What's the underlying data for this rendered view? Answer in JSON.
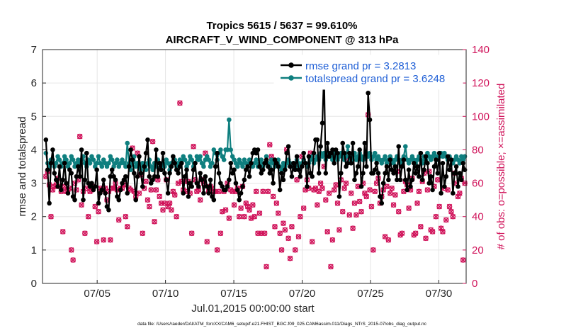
{
  "colors": {
    "rmse": "#000000",
    "spread": "#0f7f7f",
    "obs": "#d0135a",
    "legend_text": "#1f5fd6",
    "axis": "#262626"
  },
  "chart_data": {
    "type": "line",
    "title": "Tropics 5615 / 5637 = 99.610%",
    "subtitle": "AIRCRAFT_V_WIND_COMPONENT @ 313 hPa",
    "xlabel": "Jul.01,2015 00:00:00 start",
    "ylabel_left": "rmse and totalspread",
    "ylabel_right": "# of obs: o=possible; ×=assimilated",
    "footnote": "data file: /Users/raeder/DAI/ATM_forcXX/CAM6_setup/f.e21.FHIST_BGC.f09_025.CAM6assim.011/Diags_NTrS_2015-07/obs_diag_output.nc",
    "xlim": [
      1,
      32
    ],
    "ylim_left": [
      0,
      7
    ],
    "ylim_right": [
      0,
      140
    ],
    "x_ticks": [
      {
        "value": 5,
        "label": "07/05"
      },
      {
        "value": 10,
        "label": "07/10"
      },
      {
        "value": 15,
        "label": "07/15"
      },
      {
        "value": 20,
        "label": "07/20"
      },
      {
        "value": 25,
        "label": "07/25"
      },
      {
        "value": 30,
        "label": "07/30"
      }
    ],
    "y_left_ticks": [
      {
        "value": 0,
        "label": "0"
      },
      {
        "value": 1,
        "label": "1"
      },
      {
        "value": 2,
        "label": "2"
      },
      {
        "value": 3,
        "label": "3"
      },
      {
        "value": 4,
        "label": "4"
      },
      {
        "value": 5,
        "label": "5"
      },
      {
        "value": 6,
        "label": "6"
      },
      {
        "value": 7,
        "label": "7"
      }
    ],
    "y_right_ticks": [
      {
        "value": 0,
        "label": "0"
      },
      {
        "value": 20,
        "label": "20"
      },
      {
        "value": 40,
        "label": "40"
      },
      {
        "value": 60,
        "label": "60"
      },
      {
        "value": 80,
        "label": "80"
      },
      {
        "value": 100,
        "label": "100"
      },
      {
        "value": 120,
        "label": "120"
      },
      {
        "value": 140,
        "label": "140"
      }
    ],
    "legend": [
      {
        "label": "rmse grand pr = 3.2813",
        "series": "rmse"
      },
      {
        "label": "totalspread grand pr = 3.6248",
        "series": "spread"
      }
    ],
    "legend_position": "top-right",
    "series": [
      {
        "name": "rmse",
        "axis": "left",
        "values": [
          4.3,
          3.4,
          2.4,
          3.6,
          4.0,
          3.3,
          3.1,
          2.9,
          3.5,
          2.8,
          3.1,
          3.6,
          3.0,
          2.7,
          3.4,
          3.3,
          2.6,
          2.5,
          3.2,
          3.5,
          3.2,
          4.0,
          2.5,
          3.1,
          3.9,
          3.0,
          2.9,
          3.0,
          2.8,
          2.9,
          3.4,
          2.4,
          2.7,
          2.8,
          3.1,
          2.7,
          2.3,
          2.2,
          3.2,
          3.4,
          3.2,
          3.1,
          2.6,
          2.5,
          2.8,
          3.0,
          3.1,
          3.2,
          2.7,
          3.5,
          4.0,
          3.7,
          3.3,
          2.5,
          3.2,
          3.8,
          3.3,
          2.9,
          3.5,
          3.9,
          4.3,
          3.2,
          3.0,
          3.1,
          3.2,
          4.0,
          3.2,
          3.6,
          3.4,
          3.9,
          3.3,
          3.1,
          2.7,
          3.3,
          3.5,
          3.8,
          3.6,
          3.4,
          3.3,
          3.5,
          3.6,
          2.7,
          3.2,
          3.4,
          2.6,
          3.0,
          2.9,
          3.4,
          3.6,
          3.0,
          2.9,
          3.3,
          3.1,
          2.7,
          3.2,
          2.9,
          2.7,
          3.1,
          2.6,
          2.5,
          3.5,
          3.9,
          3.3,
          3.0,
          2.9,
          2.8,
          2.8,
          2.9,
          3.1,
          3.6,
          3.3,
          3.4,
          3.0,
          2.8,
          2.5,
          2.7,
          2.9,
          3.1,
          3.4,
          3.5,
          3.2,
          3.6,
          3.9,
          4.0,
          3.9,
          4.0,
          3.5,
          3.3,
          3.4,
          3.6,
          3.7,
          3.5,
          3.3,
          3.4,
          3.0,
          3.7,
          3.6,
          3.5,
          2.8,
          3.3,
          3.1,
          3.4,
          3.9,
          4.1,
          3.5,
          3.2,
          3.6,
          3.4,
          3.8,
          3.4,
          3.2,
          3.5,
          3.9,
          3.6,
          2.9,
          3.8,
          3.3,
          3.2,
          3.9,
          4.3,
          4.3,
          3.3,
          4.1,
          4.8,
          6.3,
          3.3,
          4.2,
          3.8,
          3.9,
          4.0,
          3.6,
          4.0,
          3.9,
          2.6,
          3.3,
          4.2,
          3.9,
          3.5,
          3.6,
          3.9,
          3.6,
          4.2,
          3.1,
          3.3,
          3.5,
          4.0,
          2.9,
          3.3,
          4.2,
          3.5,
          5.7,
          4.9,
          3.3,
          3.3,
          3.4,
          3.6,
          3.3,
          2.6,
          2.4,
          3.0,
          3.3,
          3.5,
          3.1,
          3.7,
          3.4,
          3.3,
          3.5,
          3.1,
          4.1,
          3.1,
          3.5,
          3.7,
          3.1,
          2.8,
          3.4,
          2.9,
          3.1,
          3.6,
          3.3,
          3.5,
          3.2,
          3.9,
          3.1,
          3.4,
          3.8,
          3.6,
          3.0,
          3.2,
          2.8,
          3.5,
          3.7,
          3.3,
          3.9,
          2.7,
          3.6,
          2.9,
          3.2,
          3.8,
          3.4,
          3.7,
          2.7,
          3.3,
          3.5,
          2.9,
          3.3,
          3.1,
          3.6,
          3.4
        ]
      },
      {
        "name": "totalspread",
        "axis": "left",
        "values": [
          3.9,
          3.6,
          3.5,
          3.7,
          3.7,
          3.5,
          3.6,
          3.8,
          3.7,
          3.5,
          3.6,
          3.8,
          3.7,
          3.5,
          3.6,
          3.8,
          3.7,
          3.5,
          3.6,
          3.7,
          3.6,
          3.7,
          3.8,
          3.6,
          3.5,
          3.7,
          3.6,
          3.8,
          3.7,
          3.5,
          3.6,
          3.8,
          3.6,
          3.5,
          3.7,
          3.6,
          3.5,
          3.6,
          3.8,
          3.7,
          3.5,
          3.6,
          3.7,
          3.5,
          3.6,
          3.7,
          3.6,
          3.5,
          4.2,
          3.6,
          3.4,
          3.6,
          3.8,
          3.5,
          3.6,
          3.5,
          3.4,
          3.6,
          3.5,
          3.4,
          3.6,
          3.7,
          3.5,
          3.4,
          3.6,
          3.5,
          3.7,
          3.6,
          3.4,
          3.6,
          3.5,
          3.7,
          3.6,
          3.4,
          3.6,
          3.8,
          3.7,
          3.5,
          3.6,
          3.7,
          3.6,
          3.8,
          3.7,
          3.5,
          3.6,
          3.8,
          3.7,
          3.5,
          3.6,
          3.8,
          3.7,
          3.8,
          3.6,
          3.5,
          3.7,
          3.8,
          3.7,
          3.5,
          3.6,
          4.0,
          3.9,
          3.7,
          3.9,
          4.0,
          3.8,
          3.7,
          4.0,
          4.0,
          4.9,
          4.0,
          3.8,
          3.7,
          3.6,
          3.5,
          3.7,
          3.6,
          3.5,
          3.7,
          3.6,
          3.5,
          3.7,
          3.6,
          3.5,
          3.6,
          3.7,
          3.5,
          3.6,
          3.7,
          3.5,
          3.6,
          3.8,
          3.6,
          3.5,
          3.7,
          3.6,
          3.5,
          3.6,
          3.7,
          3.5,
          3.4,
          3.6,
          3.5,
          3.6,
          3.7,
          3.6,
          3.5,
          3.6,
          3.5,
          3.7,
          3.6,
          3.5,
          3.6,
          3.7,
          3.6,
          3.5,
          3.6,
          3.7,
          3.8,
          3.6,
          3.7,
          3.8,
          3.7,
          3.9,
          3.8,
          3.9,
          3.7,
          3.8,
          3.9,
          3.8,
          3.7,
          3.9,
          3.8,
          3.7,
          3.8,
          3.9,
          3.8,
          3.7,
          3.8,
          4.1,
          3.8,
          3.7,
          3.8,
          3.9,
          3.7,
          3.8,
          3.9,
          3.8,
          3.7,
          3.8,
          3.9,
          3.8,
          3.9,
          3.7,
          3.8,
          3.9,
          3.7,
          3.8,
          3.7,
          3.6,
          3.7,
          3.8,
          3.6,
          3.7,
          3.8,
          3.7,
          3.6,
          3.7,
          3.8,
          3.7,
          3.6,
          3.7,
          3.8,
          4.1,
          3.7,
          3.6,
          3.7,
          3.8,
          3.7,
          3.6,
          3.7,
          3.8,
          3.7,
          3.6,
          3.8,
          3.7,
          3.9,
          3.8,
          3.7,
          3.8,
          3.9,
          3.8,
          3.7,
          3.8,
          3.9,
          3.8,
          3.9,
          3.8,
          3.7,
          3.8,
          3.7,
          3.6,
          3.7,
          3.8,
          3.7,
          3.6,
          3.8,
          3.7,
          3.8
        ]
      },
      {
        "name": "obs_assimilated",
        "axis": "right",
        "values": [
          64,
          67,
          59,
          40,
          56,
          58,
          59,
          63,
          58,
          55,
          31,
          58,
          55,
          56,
          57,
          20,
          14,
          60,
          56,
          62,
          88,
          47,
          55,
          30,
          57,
          40,
          55,
          56,
          58,
          46,
          25,
          43,
          57,
          56,
          26,
          57,
          50,
          55,
          26,
          57,
          57,
          60,
          56,
          38,
          57,
          57,
          59,
          40,
          34,
          57,
          56,
          81,
          55,
          52,
          78,
          54,
          65,
          30,
          57,
          61,
          50,
          46,
          56,
          85,
          37,
          56,
          62,
          52,
          48,
          44,
          48,
          62,
          46,
          48,
          44,
          55,
          53,
          40,
          60,
          108,
          61,
          56,
          61,
          55,
          61,
          54,
          30,
          82,
          62,
          55,
          56,
          50,
          62,
          60,
          78,
          25,
          55,
          58,
          57,
          55,
          55,
          20,
          55,
          30,
          43,
          55,
          44,
          60,
          39,
          56,
          55,
          47,
          55,
          57,
          40,
          45,
          58,
          40,
          48,
          46,
          44,
          39,
          47,
          40,
          55,
          30,
          42,
          30,
          55,
          30,
          10,
          55,
          83,
          76,
          52,
          34,
          48,
          42,
          30,
          20,
          36,
          32,
          80,
          27,
          15,
          34,
          70,
          20,
          62,
          28,
          40,
          76,
          45,
          56,
          62,
          57,
          78,
          25,
          56,
          57,
          47,
          55,
          60,
          57,
          70,
          50,
          31,
          54,
          10,
          26,
          56,
          59,
          48,
          32,
          62,
          43,
          57,
          60,
          75,
          41,
          54,
          33,
          48,
          41,
          58,
          49,
          43,
          60,
          54,
          52,
          101,
          56,
          46,
          20,
          55,
          60,
          63,
          48,
          52,
          56,
          28,
          58,
          26,
          54,
          57,
          47,
          53,
          67,
          43,
          29,
          30,
          55,
          61,
          59,
          45,
          56,
          63,
          29,
          30,
          48,
          55,
          34,
          61,
          66,
          27,
          56,
          67,
          32,
          31,
          58,
          40,
          62,
          46,
          33,
          31,
          57,
          38,
          56,
          46,
          43,
          40,
          66,
          60,
          52,
          54,
          63,
          14,
          60
        ]
      }
    ]
  }
}
